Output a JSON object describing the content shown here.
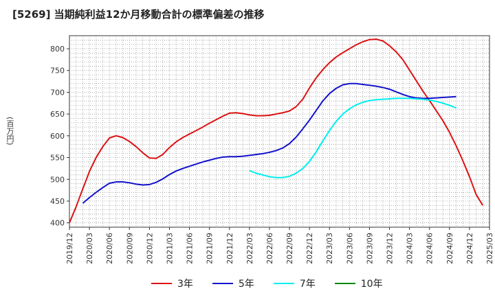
{
  "chart_data": {
    "type": "line",
    "title": "[5269]  当期純利益12か月移動合計の標準偏差の推移",
    "ylabel": "(百万円)",
    "xlabel": "",
    "ylim": [
      390,
      830
    ],
    "yticks": [
      400,
      450,
      500,
      550,
      600,
      650,
      700,
      750,
      800
    ],
    "xticks": [
      "2019/12",
      "2020/03",
      "2020/06",
      "2020/09",
      "2020/12",
      "2021/03",
      "2021/06",
      "2021/09",
      "2021/12",
      "2022/03",
      "2022/06",
      "2022/09",
      "2022/12",
      "2023/03",
      "2023/06",
      "2023/09",
      "2023/12",
      "2024/03",
      "2024/06",
      "2024/09",
      "2024/12",
      "2025/03"
    ],
    "grid": true,
    "legend_position": "bottom",
    "series": [
      {
        "name": "3年",
        "color": "#dd1111",
        "start_index": 0,
        "values": [
          400,
          437,
          478,
          518,
          550,
          575,
          595,
          600,
          596,
          587,
          575,
          561,
          549,
          548,
          557,
          573,
          586,
          596,
          604,
          612,
          620,
          629,
          637,
          645,
          652,
          653,
          651,
          648,
          646,
          646,
          647,
          650,
          653,
          657,
          667,
          684,
          710,
          733,
          752,
          768,
          781,
          791,
          800,
          809,
          816,
          821,
          822,
          818,
          807,
          793,
          775,
          751,
          727,
          703,
          681,
          658,
          635,
          608,
          577,
          543,
          506,
          465,
          440
        ]
      },
      {
        "name": "5年",
        "color": "#1111cc",
        "start_index": 2,
        "values": [
          445,
          458,
          470,
          481,
          491,
          494,
          494,
          492,
          489,
          487,
          488,
          493,
          501,
          511,
          519,
          525,
          530,
          535,
          540,
          544,
          548,
          551,
          552,
          552,
          553,
          555,
          557,
          559,
          562,
          566,
          572,
          582,
          597,
          616,
          636,
          658,
          680,
          697,
          709,
          717,
          720,
          720,
          718,
          716,
          714,
          711,
          707,
          701,
          695,
          690,
          687,
          686,
          686,
          687,
          688,
          689,
          690
        ]
      },
      {
        "name": "7年",
        "color": "#00eeee",
        "start_index": 27,
        "values": [
          520,
          514,
          510,
          506,
          504,
          504,
          507,
          514,
          525,
          541,
          563,
          588,
          612,
          633,
          650,
          662,
          671,
          677,
          681,
          683,
          684,
          685,
          686,
          686,
          686,
          685,
          684,
          682,
          679,
          675,
          670,
          664
        ]
      },
      {
        "name": "10年",
        "color": "#008800",
        "start_index": 0,
        "values": []
      }
    ]
  }
}
